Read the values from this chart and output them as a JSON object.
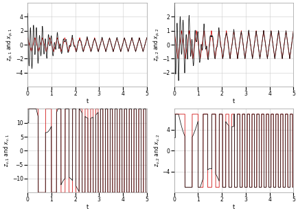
{
  "fig_width": 4.34,
  "fig_height": 3.1,
  "dpi": 100,
  "background_color": "#ffffff",
  "grid_color": "#cccccc",
  "line_color_black": "#111111",
  "line_color_red": "#cc0000",
  "t_max": 5.0,
  "subplots": [
    {
      "ylabel": "$z_{p,1}$ and $x_{p,1}$",
      "xlabel": "t",
      "ylim": [
        -6,
        6
      ],
      "yticks": [
        -4,
        -2,
        0,
        2,
        4
      ]
    },
    {
      "ylabel": "$z_{p,2}$ and $x_{p,2}$",
      "xlabel": "t",
      "ylim": [
        -3,
        3
      ],
      "yticks": [
        -2,
        -1,
        0,
        1,
        2
      ]
    },
    {
      "ylabel": "$z_{v,1}$ and $x_{v,1}$",
      "xlabel": "t",
      "ylim": [
        -15,
        15
      ],
      "yticks": [
        -10,
        -5,
        0,
        5,
        10
      ]
    },
    {
      "ylabel": "$z_{v,2}$ and $x_{v,2}$",
      "xlabel": "t",
      "ylim": [
        -8,
        8
      ],
      "yticks": [
        -4,
        0,
        4
      ]
    }
  ]
}
